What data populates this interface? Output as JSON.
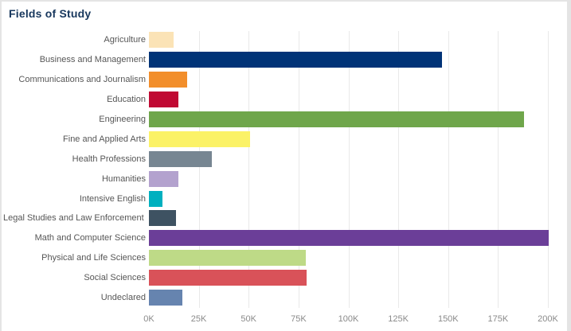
{
  "chart_data": {
    "type": "bar",
    "orientation": "horizontal",
    "title": "Fields of Study",
    "title_color": "#17375D",
    "categories": [
      "Agriculture",
      "Business and Management",
      "Communications and Journalism",
      "Education",
      "Engineering",
      "Fine and Applied Arts",
      "Health Professions",
      "Humanities",
      "Intensive English",
      "Legal Studies and Law Enforcement",
      "Math and Computer Science",
      "Physical and Life Sciences",
      "Social Sciences",
      "Undeclared"
    ],
    "values": [
      12500,
      147000,
      19000,
      14700,
      188000,
      50500,
      31500,
      14600,
      6800,
      13600,
      200500,
      78700,
      78900,
      16800
    ],
    "bar_colors": [
      "#FBE3B6",
      "#003377",
      "#F28E2B",
      "#C00A33",
      "#6FA64B",
      "#FBF267",
      "#778692",
      "#B3A2CE",
      "#00B0BF",
      "#3E5262",
      "#6B3E98",
      "#BEDA87",
      "#D95259",
      "#6684AF"
    ],
    "clipped_label_index": 9,
    "clipped_label_visible_text": "Legal Studies and Law Enforceme",
    "xlabel": "",
    "ylabel": "",
    "xlim": [
      0,
      208400
    ],
    "x_ticks": [
      "0K",
      "25K",
      "50K",
      "75K",
      "100K",
      "125K",
      "150K",
      "175K",
      "200K"
    ],
    "x_tick_values": [
      0,
      25000,
      50000,
      75000,
      100000,
      125000,
      150000,
      175000,
      200000
    ],
    "grid": "vertical",
    "grid_color": "#E9E9E9",
    "legend": "none",
    "label_color": "#565656",
    "tick_label_color": "#8A8A8A",
    "frame_border_color": "#E4E4E4"
  }
}
